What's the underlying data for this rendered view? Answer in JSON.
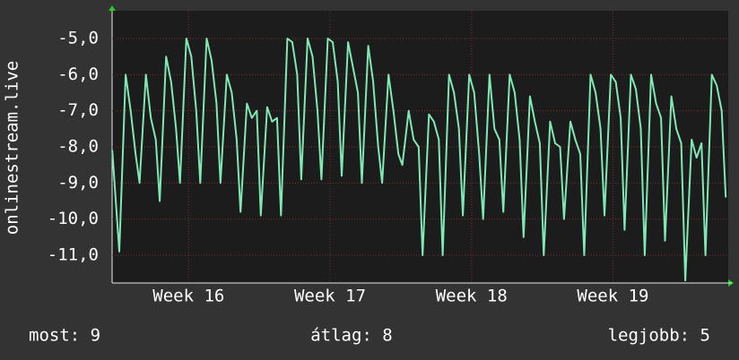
{
  "chart_data": {
    "type": "line",
    "ylabel": "onlinestream.live",
    "footer": {
      "current": "most: 9",
      "average": "átlag: 8",
      "best": "legjobb: 5"
    },
    "xlim": [
      15.459,
      19.815
    ],
    "xticks": [
      {
        "value": 16,
        "label": "Week 16"
      },
      {
        "value": 17,
        "label": "Week 17"
      },
      {
        "value": 18,
        "label": "Week 18"
      },
      {
        "value": 19,
        "label": "Week 19"
      }
    ],
    "ylim": [
      -11.77,
      -4.23
    ],
    "yticks": [
      {
        "value": -11,
        "label": "-11,0"
      },
      {
        "value": -10,
        "label": "-10,0"
      },
      {
        "value": -9,
        "label": "-9,0"
      },
      {
        "value": -8,
        "label": "-8,0"
      },
      {
        "value": -7,
        "label": "-7,0"
      },
      {
        "value": -6,
        "label": "-6,0"
      },
      {
        "value": -5,
        "label": "-5,0"
      }
    ],
    "grid": true,
    "x": [
      15.46,
      15.51,
      15.555,
      15.59,
      15.625,
      15.653,
      15.698,
      15.733,
      15.768,
      15.796,
      15.841,
      15.876,
      15.911,
      15.939,
      15.984,
      16.019,
      16.054,
      16.082,
      16.127,
      16.162,
      16.197,
      16.225,
      16.27,
      16.305,
      16.34,
      16.367,
      16.412,
      16.447,
      16.482,
      16.51,
      16.555,
      16.59,
      16.625,
      16.653,
      16.698,
      16.733,
      16.768,
      16.796,
      16.841,
      16.876,
      16.911,
      16.939,
      16.984,
      17.019,
      17.054,
      17.082,
      17.127,
      17.162,
      17.197,
      17.225,
      17.27,
      17.305,
      17.34,
      17.368,
      17.413,
      17.448,
      17.483,
      17.511,
      17.556,
      17.591,
      17.626,
      17.654,
      17.699,
      17.734,
      17.769,
      17.796,
      17.841,
      17.876,
      17.911,
      17.939,
      17.984,
      18.019,
      18.054,
      18.082,
      18.127,
      18.162,
      18.197,
      18.225,
      18.27,
      18.305,
      18.34,
      18.368,
      18.413,
      18.448,
      18.483,
      18.511,
      18.556,
      18.591,
      18.626,
      18.654,
      18.699,
      18.734,
      18.769,
      18.797,
      18.842,
      18.877,
      18.912,
      18.94,
      18.985,
      19.02,
      19.055,
      19.082,
      19.127,
      19.162,
      19.197,
      19.225,
      19.27,
      19.305,
      19.34,
      19.368,
      19.413,
      19.448,
      19.483,
      19.511,
      19.556,
      19.591,
      19.626,
      19.654,
      19.699,
      19.734,
      19.769,
      19.797
    ],
    "series": [
      {
        "name": "onlinestream.live",
        "color": "#7fe8b4",
        "values": [
          -8.1,
          -10.9,
          -6.0,
          -7.0,
          -8.2,
          -9.0,
          -6.0,
          -7.2,
          -7.8,
          -9.5,
          -5.5,
          -6.2,
          -7.5,
          -9.0,
          -5.0,
          -5.5,
          -7.0,
          -9.0,
          -5.0,
          -5.6,
          -6.8,
          -9.0,
          -6.0,
          -6.5,
          -7.8,
          -9.8,
          -6.8,
          -7.2,
          -7.0,
          -9.9,
          -6.9,
          -7.3,
          -7.2,
          -9.9,
          -5.0,
          -5.1,
          -6.0,
          -8.9,
          -5.0,
          -5.5,
          -7.0,
          -8.9,
          -5.0,
          -5.1,
          -6.2,
          -8.8,
          -5.1,
          -5.8,
          -6.5,
          -9.0,
          -5.2,
          -6.2,
          -8.0,
          -9.0,
          -6.0,
          -7.0,
          -8.2,
          -8.5,
          -7.0,
          -7.8,
          -8.0,
          -11.0,
          -7.1,
          -7.3,
          -7.8,
          -11.0,
          -6.0,
          -6.5,
          -7.5,
          -9.9,
          -6.0,
          -6.5,
          -8.2,
          -10.0,
          -6.0,
          -7.5,
          -7.8,
          -9.8,
          -6.0,
          -6.5,
          -7.8,
          -10.5,
          -6.6,
          -7.3,
          -7.9,
          -11.0,
          -7.3,
          -7.9,
          -8.0,
          -10.0,
          -7.3,
          -7.8,
          -8.2,
          -11.0,
          -6.0,
          -6.5,
          -7.5,
          -9.9,
          -6.0,
          -6.2,
          -7.2,
          -10.3,
          -6.0,
          -6.4,
          -7.5,
          -11.0,
          -6.0,
          -6.8,
          -7.2,
          -10.6,
          -6.6,
          -7.5,
          -7.9,
          -11.7,
          -7.8,
          -8.3,
          -7.9,
          -11.0,
          -6.0,
          -6.3,
          -7.0,
          -9.4
        ]
      }
    ]
  }
}
